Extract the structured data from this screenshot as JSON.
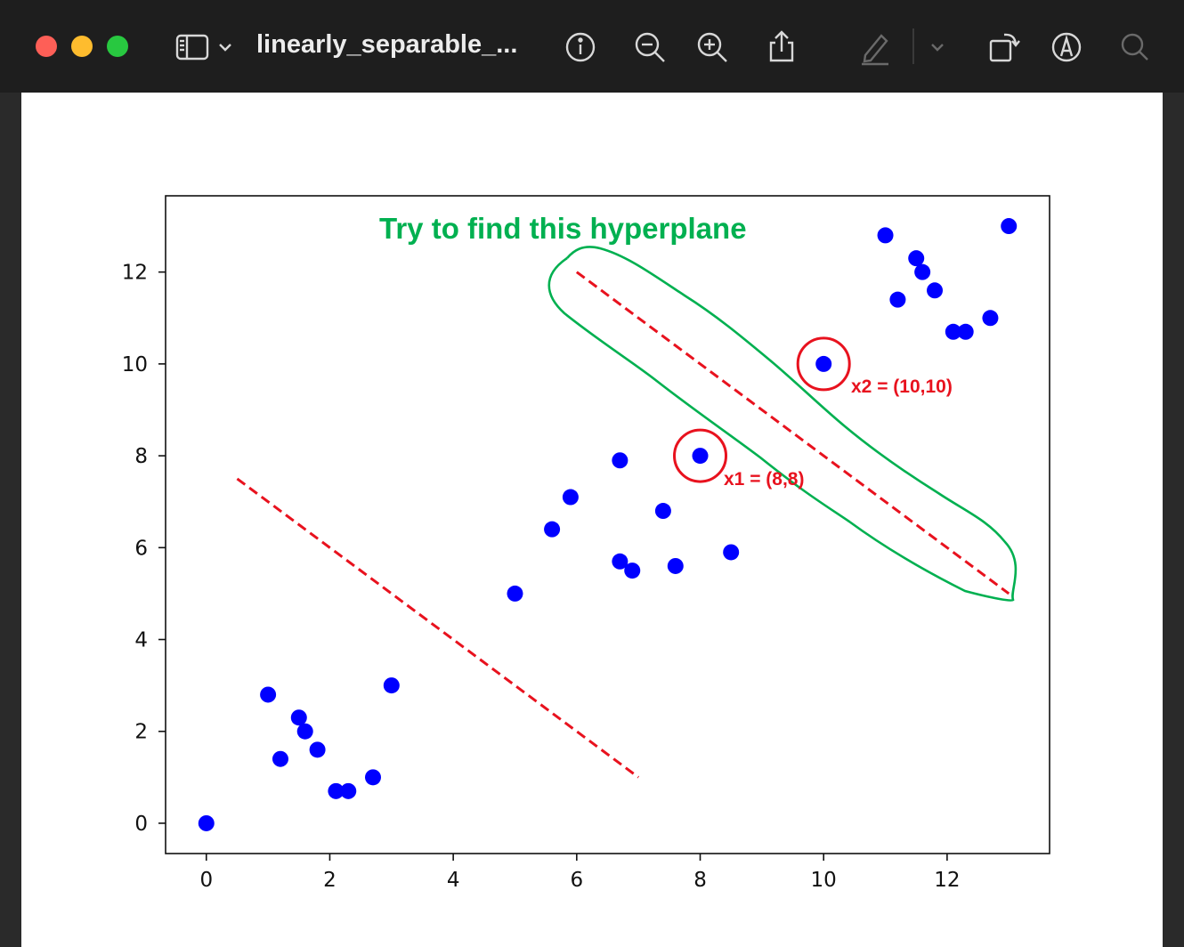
{
  "window": {
    "title": "linearly_separable_...",
    "toolbar_icons": [
      "sidebar-icon",
      "chevron-down-icon",
      "info-icon",
      "zoom-out-icon",
      "zoom-in-icon",
      "share-icon",
      "markup-pen-icon",
      "chevron-down-icon",
      "rotate-icon",
      "annotate-icon",
      "search-icon"
    ]
  },
  "chart_data": {
    "type": "scatter",
    "xlim": [
      -0.66,
      13.66
    ],
    "ylim": [
      -0.66,
      13.66
    ],
    "xticks": [
      0,
      2,
      4,
      6,
      8,
      10,
      12
    ],
    "yticks": [
      0,
      2,
      4,
      6,
      8,
      10,
      12
    ],
    "grid": false,
    "point_color": "#0000ff",
    "points": [
      [
        0,
        0
      ],
      [
        1,
        2.8
      ],
      [
        1.2,
        1.4
      ],
      [
        1.5,
        2.3
      ],
      [
        1.6,
        2.0
      ],
      [
        1.8,
        1.6
      ],
      [
        2.1,
        0.7
      ],
      [
        2.3,
        0.7
      ],
      [
        2.7,
        1.0
      ],
      [
        3,
        3
      ],
      [
        5,
        5
      ],
      [
        5.6,
        6.4
      ],
      [
        5.9,
        7.1
      ],
      [
        6.7,
        7.9
      ],
      [
        6.7,
        5.7
      ],
      [
        6.9,
        5.5
      ],
      [
        7.4,
        6.8
      ],
      [
        7.6,
        5.6
      ],
      [
        8,
        8
      ],
      [
        8.5,
        5.9
      ],
      [
        10,
        10
      ],
      [
        11,
        12.8
      ],
      [
        11.2,
        11.4
      ],
      [
        11.5,
        12.3
      ],
      [
        11.6,
        12.0
      ],
      [
        11.8,
        11.6
      ],
      [
        12.1,
        10.7
      ],
      [
        12.3,
        10.7
      ],
      [
        12.7,
        11.0
      ],
      [
        13,
        13
      ]
    ],
    "lines": [
      {
        "style": "dashed",
        "color": "#e8121e",
        "x": [
          0.5,
          7.0
        ],
        "y": [
          7.5,
          1.0
        ]
      },
      {
        "style": "dashed",
        "color": "#e8121e",
        "x": [
          6.0,
          13.0
        ],
        "y": [
          12.0,
          5.0
        ]
      }
    ],
    "annotations": {
      "title": {
        "text": "Try to find this hyperplane",
        "color": "#00b050"
      },
      "x1": {
        "text": "x1 = (8,8)",
        "point": [
          8,
          8
        ],
        "color": "#e8121e"
      },
      "x2": {
        "text": "x2 = (10,10)",
        "point": [
          10,
          10
        ],
        "color": "#e8121e"
      }
    }
  }
}
